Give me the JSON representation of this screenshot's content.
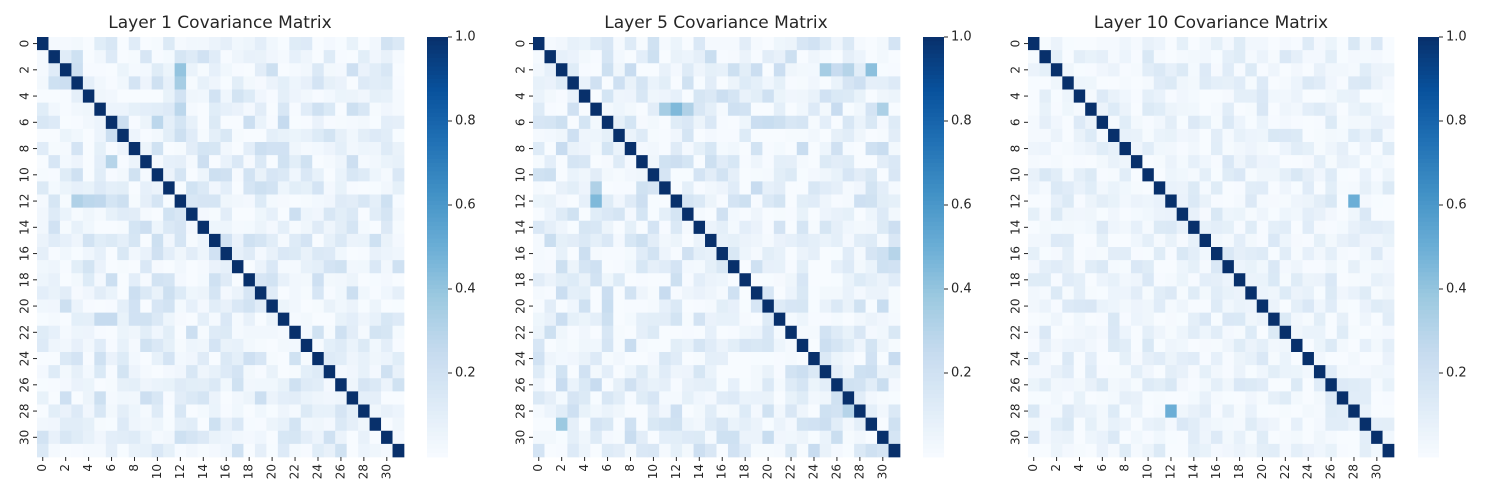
{
  "figure": {
    "background": "#ffffff"
  },
  "chart_data": [
    {
      "type": "heatmap",
      "title": "Layer 1 Covariance Matrix",
      "size": 32,
      "tick_labels": [
        "0",
        "2",
        "4",
        "6",
        "8",
        "10",
        "12",
        "14",
        "16",
        "18",
        "20",
        "22",
        "24",
        "26",
        "28",
        "30"
      ],
      "diagonal": 1.0,
      "background_value": 0.06,
      "noise_range": [
        0.0,
        0.2
      ],
      "noise_seed": 11,
      "highlights": [
        {
          "row": 2,
          "col": 12,
          "value": 0.4
        },
        {
          "row": 3,
          "col": 12,
          "value": 0.35
        },
        {
          "row": 12,
          "col": 3,
          "value": 0.32
        },
        {
          "row": 12,
          "col": 4,
          "value": 0.28
        },
        {
          "row": 12,
          "col": 5,
          "value": 0.27
        },
        {
          "row": 5,
          "col": 12,
          "value": 0.28
        },
        {
          "row": 6,
          "col": 10,
          "value": 0.28
        },
        {
          "row": 6,
          "col": 21,
          "value": 0.25
        },
        {
          "row": 9,
          "col": 6,
          "value": 0.3
        },
        {
          "row": 21,
          "col": 5,
          "value": 0.25
        },
        {
          "row": 21,
          "col": 6,
          "value": 0.25
        }
      ],
      "colorbar": {
        "min": 0.0,
        "max": 1.0,
        "ticks": [
          "0.2",
          "0.4",
          "0.6",
          "0.8",
          "1.0"
        ],
        "tick_values": [
          0.2,
          0.4,
          0.6,
          0.8,
          1.0
        ]
      },
      "colormap": "Blues"
    },
    {
      "type": "heatmap",
      "title": "Layer 5 Covariance Matrix",
      "size": 32,
      "tick_labels": [
        "0",
        "2",
        "4",
        "6",
        "8",
        "10",
        "12",
        "14",
        "16",
        "18",
        "20",
        "22",
        "24",
        "26",
        "28",
        "30"
      ],
      "diagonal": 1.0,
      "background_value": 0.07,
      "noise_range": [
        0.0,
        0.22
      ],
      "noise_seed": 23,
      "highlights": [
        {
          "row": 5,
          "col": 12,
          "value": 0.45
        },
        {
          "row": 5,
          "col": 11,
          "value": 0.35
        },
        {
          "row": 5,
          "col": 13,
          "value": 0.32
        },
        {
          "row": 12,
          "col": 5,
          "value": 0.45
        },
        {
          "row": 11,
          "col": 5,
          "value": 0.32
        },
        {
          "row": 2,
          "col": 29,
          "value": 0.42
        },
        {
          "row": 2,
          "col": 25,
          "value": 0.35
        },
        {
          "row": 2,
          "col": 27,
          "value": 0.3
        },
        {
          "row": 29,
          "col": 2,
          "value": 0.38
        },
        {
          "row": 5,
          "col": 30,
          "value": 0.33
        },
        {
          "row": 16,
          "col": 31,
          "value": 0.3
        },
        {
          "row": 28,
          "col": 27,
          "value": 0.3
        }
      ],
      "colorbar": {
        "min": 0.0,
        "max": 1.0,
        "ticks": [
          "0.2",
          "0.4",
          "0.6",
          "0.8",
          "1.0"
        ],
        "tick_values": [
          0.2,
          0.4,
          0.6,
          0.8,
          1.0
        ]
      },
      "colormap": "Blues"
    },
    {
      "type": "heatmap",
      "title": "Layer 10 Covariance Matrix",
      "size": 32,
      "tick_labels": [
        "0",
        "2",
        "4",
        "6",
        "8",
        "10",
        "12",
        "14",
        "16",
        "18",
        "20",
        "22",
        "24",
        "26",
        "28",
        "30"
      ],
      "diagonal": 1.0,
      "background_value": 0.04,
      "noise_range": [
        0.0,
        0.14
      ],
      "noise_seed": 37,
      "highlights": [
        {
          "row": 12,
          "col": 28,
          "value": 0.5
        },
        {
          "row": 28,
          "col": 12,
          "value": 0.5
        }
      ],
      "colorbar": {
        "min": 0.0,
        "max": 1.0,
        "ticks": [
          "0.2",
          "0.4",
          "0.6",
          "0.8",
          "1.0"
        ],
        "tick_values": [
          0.2,
          0.4,
          0.6,
          0.8,
          1.0
        ]
      },
      "colormap": "Blues"
    }
  ]
}
